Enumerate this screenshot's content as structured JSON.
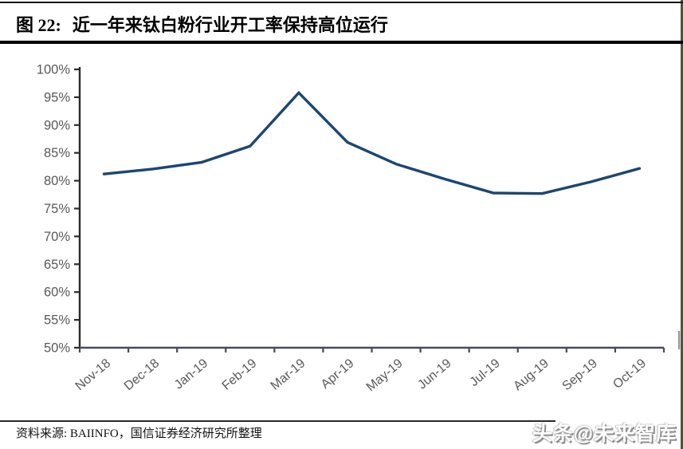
{
  "page": {
    "figure_label": "图 22:",
    "title": "近一年来钛白粉行业开工率保持高位运行",
    "source_note": "资料来源: BAIINFO，国信证券经济研究所整理",
    "watermark": "头条@未来智库"
  },
  "colors": {
    "line": "#1b4672",
    "y_axis": "#2b2b2b",
    "x_axis": "#474a5c",
    "tick_label": "#595959",
    "right_border": "#55543a",
    "axis_fragment": "#8e93a0"
  },
  "chart_data": {
    "type": "line",
    "title": "近一年来钛白粉行业开工率保持高位运行",
    "categories": [
      "Nov-18",
      "Dec-18",
      "Jan-19",
      "Feb-19",
      "Mar-19",
      "Apr-19",
      "May-19",
      "Jun-19",
      "Jul-19",
      "Aug-19",
      "Sep-19",
      "Oct-19"
    ],
    "values": [
      81.2,
      82.1,
      83.3,
      86.2,
      95.8,
      86.9,
      83.0,
      80.3,
      77.8,
      77.7,
      79.8,
      82.2
    ],
    "xlabel": "",
    "ylabel": "",
    "ylim": [
      50,
      100
    ],
    "ytick_step": 5,
    "ytick_suffix": "%",
    "grid": false,
    "legend": "none"
  }
}
